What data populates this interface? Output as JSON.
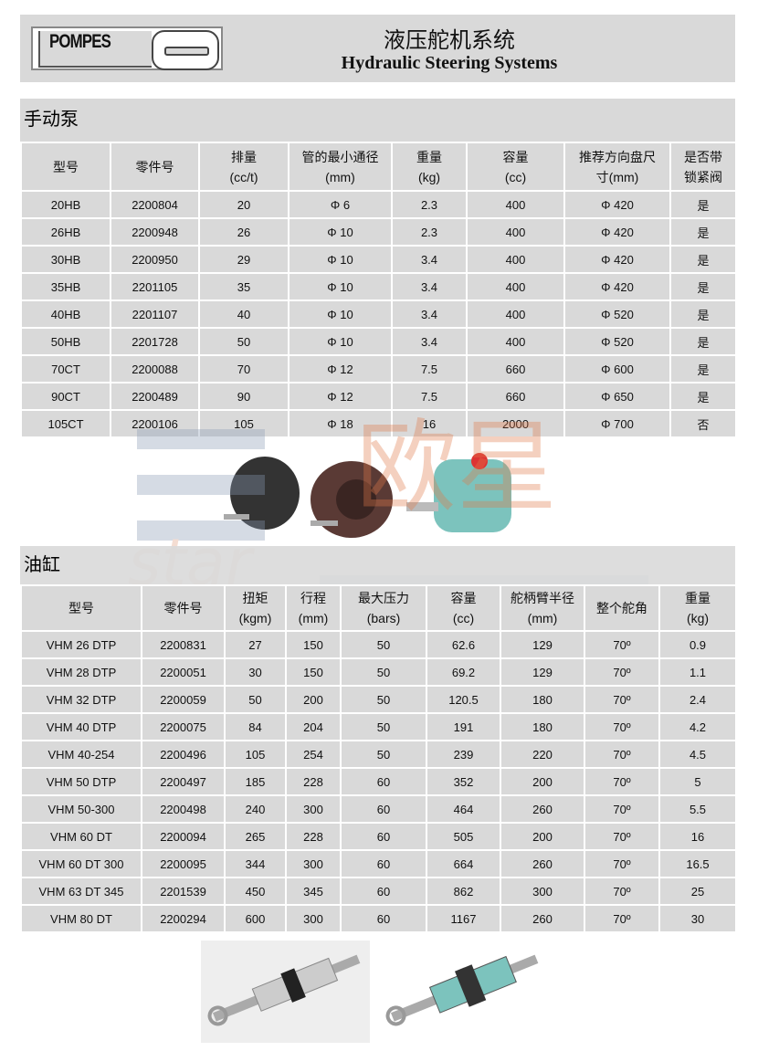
{
  "header": {
    "logo_text": "POMPES",
    "title_cn": "液压舵机系统",
    "title_en": "Hydraulic Steering Systems"
  },
  "watermark": {
    "cn": "欧星",
    "en": "star"
  },
  "pumps": {
    "title": "手动泵",
    "columns": [
      [
        "型号",
        ""
      ],
      [
        "零件号",
        ""
      ],
      [
        "排量",
        "(cc/t)"
      ],
      [
        "管的最小通径",
        "(mm)"
      ],
      [
        "重量",
        "(kg)"
      ],
      [
        "容量",
        "(cc)"
      ],
      [
        "推荐方向盘尺",
        "寸(mm)"
      ],
      [
        "是否带",
        "锁紧阀"
      ]
    ],
    "rows": [
      [
        "20HB",
        "2200804",
        "20",
        "Φ 6",
        "2.3",
        "400",
        "Φ 420",
        "是"
      ],
      [
        "26HB",
        "2200948",
        "26",
        "Φ 10",
        "2.3",
        "400",
        "Φ 420",
        "是"
      ],
      [
        "30HB",
        "2200950",
        "29",
        "Φ 10",
        "3.4",
        "400",
        "Φ 420",
        "是"
      ],
      [
        "35HB",
        "2201105",
        "35",
        "Φ 10",
        "3.4",
        "400",
        "Φ 420",
        "是"
      ],
      [
        "40HB",
        "2201107",
        "40",
        "Φ 10",
        "3.4",
        "400",
        "Φ 520",
        "是"
      ],
      [
        "50HB",
        "2201728",
        "50",
        "Φ 10",
        "3.4",
        "400",
        "Φ 520",
        "是"
      ],
      [
        "70CT",
        "2200088",
        "70",
        "Φ 12",
        "7.5",
        "660",
        "Φ 600",
        "是"
      ],
      [
        "90CT",
        "2200489",
        "90",
        "Φ 12",
        "7.5",
        "660",
        "Φ 650",
        "是"
      ],
      [
        "105CT",
        "2200106",
        "105",
        "Φ 18",
        "16",
        "2000",
        "Φ 700",
        "否"
      ]
    ]
  },
  "cylinders": {
    "title": "油缸",
    "columns": [
      [
        "型号",
        ""
      ],
      [
        "零件号",
        ""
      ],
      [
        "扭矩",
        "(kgm)"
      ],
      [
        "行程",
        "(mm)"
      ],
      [
        "最大压力",
        "(bars)"
      ],
      [
        "容量",
        "(cc)"
      ],
      [
        "舵柄臂半径",
        "(mm)"
      ],
      [
        "整个舵角",
        ""
      ],
      [
        "重量",
        "(kg)"
      ]
    ],
    "rows": [
      [
        "VHM 26 DTP",
        "2200831",
        "27",
        "150",
        "50",
        "62.6",
        "129",
        "70º",
        "0.9"
      ],
      [
        "VHM 28 DTP",
        "2200051",
        "30",
        "150",
        "50",
        "69.2",
        "129",
        "70º",
        "1.1"
      ],
      [
        "VHM 32 DTP",
        "2200059",
        "50",
        "200",
        "50",
        "120.5",
        "180",
        "70º",
        "2.4"
      ],
      [
        "VHM 40 DTP",
        "2200075",
        "84",
        "204",
        "50",
        "191",
        "180",
        "70º",
        "4.2"
      ],
      [
        "VHM 40-254",
        "2200496",
        "105",
        "254",
        "50",
        "239",
        "220",
        "70º",
        "4.5"
      ],
      [
        "VHM 50 DTP",
        "2200497",
        "185",
        "228",
        "60",
        "352",
        "200",
        "70º",
        "5"
      ],
      [
        "VHM 50-300",
        "2200498",
        "240",
        "300",
        "60",
        "464",
        "260",
        "70º",
        "5.5"
      ],
      [
        "VHM 60 DT",
        "2200094",
        "265",
        "228",
        "60",
        "505",
        "200",
        "70º",
        "16"
      ],
      [
        "VHM 60 DT 300",
        "2200095",
        "344",
        "300",
        "60",
        "664",
        "260",
        "70º",
        "16.5"
      ],
      [
        "VHM 63 DT 345",
        "2201539",
        "450",
        "345",
        "60",
        "862",
        "300",
        "70º",
        "25"
      ],
      [
        "VHM 80 DT",
        "2200294",
        "600",
        "300",
        "60",
        "1167",
        "260",
        "70º",
        "30"
      ]
    ]
  }
}
